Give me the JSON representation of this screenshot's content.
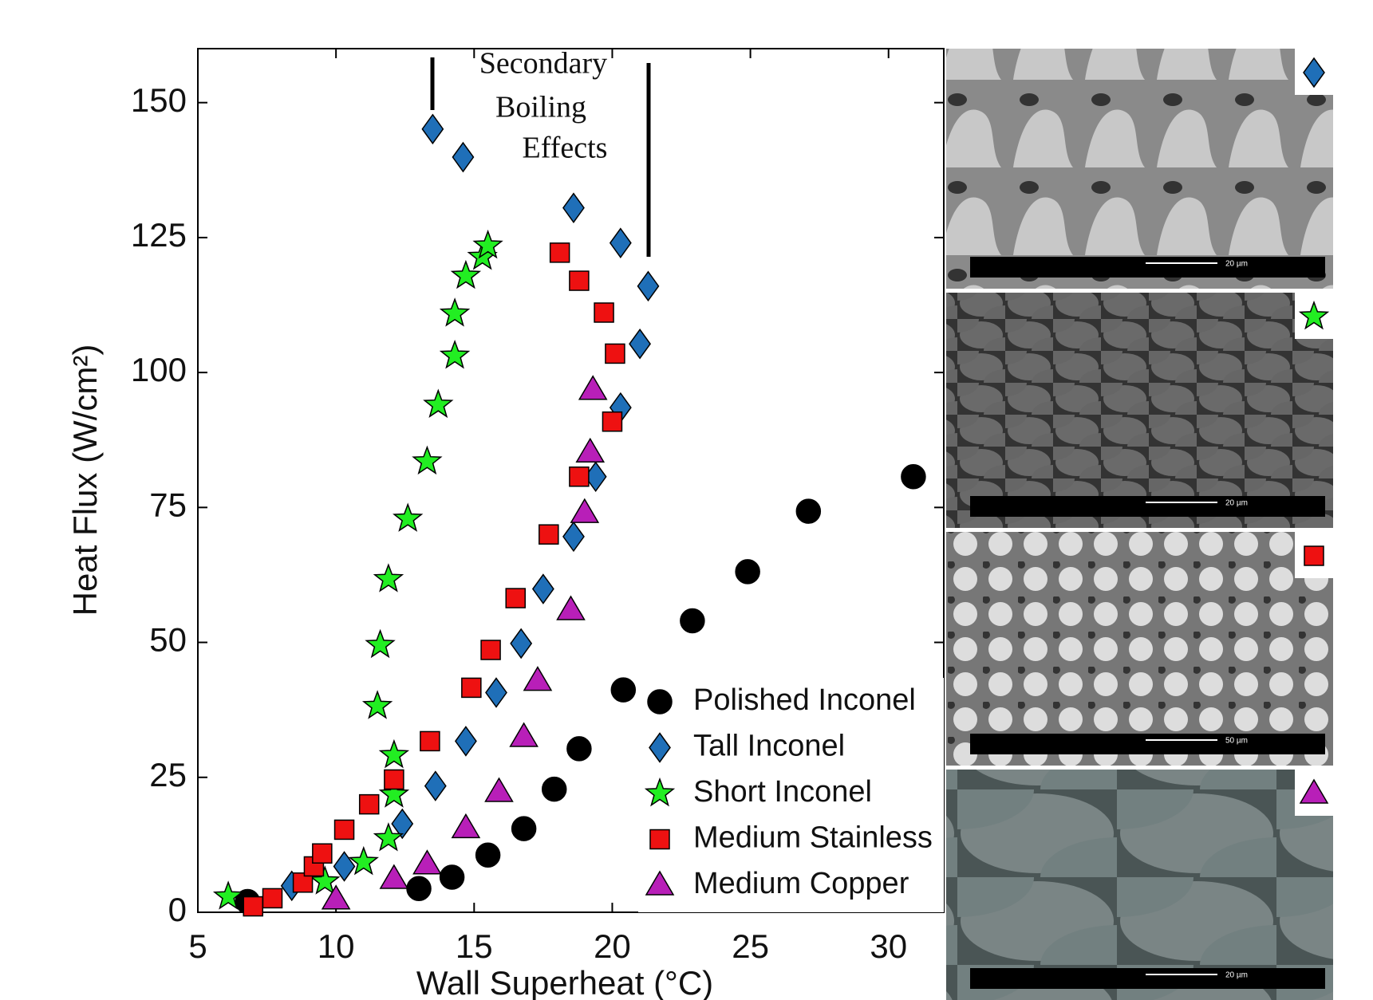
{
  "chart_data": {
    "type": "scatter",
    "xlabel": "Wall Superheat (°C)",
    "ylabel": "Heat Flux (W/cm²)",
    "xlim": [
      5,
      32
    ],
    "ylim": [
      0,
      160
    ],
    "xticks": [
      5,
      10,
      15,
      20,
      25,
      30
    ],
    "yticks": [
      0,
      25,
      50,
      75,
      100,
      125,
      150
    ],
    "legend": "lower right",
    "annotation": [
      "Secondary",
      "Boiling",
      "Effects"
    ],
    "series": [
      {
        "name": "Polished Inconel",
        "color": "#000000",
        "marker": "circle",
        "x": [
          6.8,
          13.0,
          14.2,
          15.5,
          16.8,
          17.9,
          18.8,
          20.4,
          22.9,
          24.9,
          27.1,
          30.9
        ],
        "values": [
          2,
          4.4,
          6.5,
          10.6,
          15.5,
          22.8,
          30.3,
          41.2,
          54,
          63.1,
          74.3,
          80.7
        ]
      },
      {
        "name": "Tall Inconel",
        "color": "#1f6fb8",
        "marker": "diamond",
        "x": [
          8.4,
          10.3,
          12.4,
          13.6,
          14.7,
          15.8,
          16.7,
          17.5,
          18.6,
          19.4,
          20.3,
          21.0,
          21.3,
          20.3,
          18.6,
          14.6,
          13.5
        ],
        "values": [
          4.9,
          8.5,
          16.4,
          23.4,
          31.7,
          40.7,
          49.8,
          59.9,
          69.6,
          80.7,
          93.5,
          105.3,
          116,
          124,
          130.5,
          139.9,
          145.1
        ]
      },
      {
        "name": "Short Inconel",
        "color": "#22ee22",
        "marker": "star",
        "x": [
          6.1,
          9.6,
          11.0,
          11.9,
          12.1,
          12.1,
          11.5,
          11.6,
          11.9,
          12.6,
          13.3,
          13.7,
          14.3,
          14.3,
          14.7,
          15.3,
          15.5
        ],
        "values": [
          2.9,
          5.7,
          9.3,
          13.7,
          21.8,
          29.1,
          38.2,
          49.5,
          61.7,
          72.9,
          83.5,
          94.0,
          103.1,
          110.9,
          117.9,
          121.4,
          123.5
        ]
      },
      {
        "name": "Medium Stainless",
        "color": "#ee1111",
        "marker": "square",
        "x": [
          7.0,
          7.7,
          8.8,
          9.2,
          9.5,
          10.3,
          11.2,
          12.1,
          13.4,
          14.9,
          15.6,
          16.5,
          17.7,
          18.8,
          20.0,
          20.1,
          19.7,
          18.8,
          18.1
        ],
        "values": [
          1.1,
          2.6,
          5.5,
          8.5,
          10.9,
          15.3,
          20.0,
          24.6,
          31.7,
          41.6,
          48.6,
          58.2,
          70.0,
          80.7,
          90.9,
          103.5,
          111.1,
          117,
          122.2
        ]
      },
      {
        "name": "Medium Copper",
        "color": "#b81fb8",
        "marker": "triangle",
        "x": [
          10.0,
          12.1,
          13.3,
          14.7,
          15.9,
          16.8,
          17.3,
          18.5,
          19.0,
          19.2,
          19.3
        ],
        "values": [
          2.4,
          6.2,
          8.9,
          15.6,
          22.3,
          32.5,
          42.9,
          56.0,
          74.0,
          85.2,
          96.8
        ]
      }
    ]
  },
  "sem_images": [
    {
      "scale_label": "20 µm"
    },
    {
      "scale_label": "20 µm"
    },
    {
      "scale_label": "50 µm"
    },
    {
      "scale_label": "20 µm"
    }
  ]
}
